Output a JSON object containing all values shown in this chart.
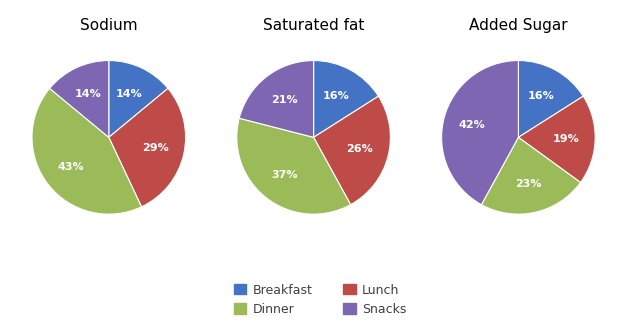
{
  "charts": [
    {
      "title": "Sodium",
      "values": [
        14,
        29,
        43,
        14
      ],
      "labels": [
        "Breakfast",
        "Lunch",
        "Dinner",
        "Snacks"
      ],
      "startangle": 90
    },
    {
      "title": "Saturated fat",
      "values": [
        16,
        26,
        37,
        21
      ],
      "labels": [
        "Breakfast",
        "Lunch",
        "Dinner",
        "Snacks"
      ],
      "startangle": 90
    },
    {
      "title": "Added Sugar",
      "values": [
        16,
        19,
        23,
        42
      ],
      "labels": [
        "Breakfast",
        "Lunch",
        "Dinner",
        "Snacks"
      ],
      "startangle": 90
    }
  ],
  "colors": {
    "Breakfast": "#4472C4",
    "Lunch": "#BE4B48",
    "Dinner": "#9BBB59",
    "Snacks": "#7F66B2"
  },
  "legend_col1": [
    "Breakfast",
    "Lunch"
  ],
  "legend_col2": [
    "Dinner",
    "Snacks"
  ],
  "text_color": "white",
  "label_fontsize": 8,
  "title_fontsize": 11,
  "background_color": "#ffffff"
}
